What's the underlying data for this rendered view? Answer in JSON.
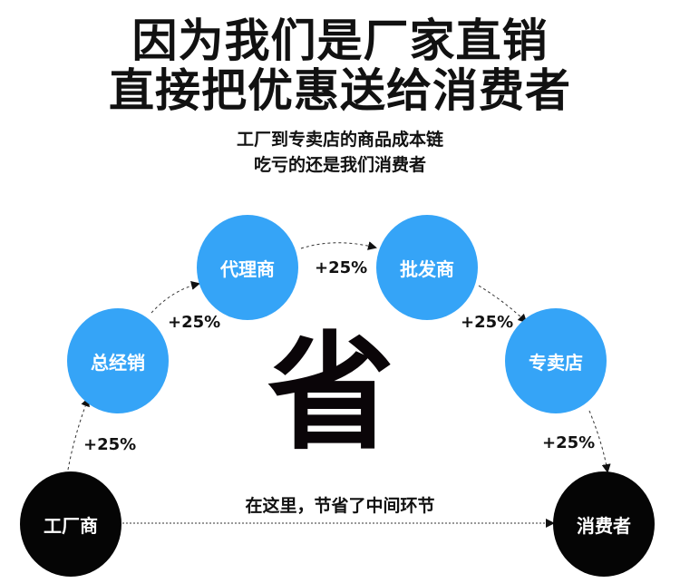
{
  "title_line1": "因为我们是厂家直销",
  "title_line2": "直接把优惠送给消费者",
  "subtitle_line1": "工厂到专卖店的商品成本链",
  "subtitle_line2": "吃亏的还是我们消费者",
  "nodes": {
    "factory": "工厂商",
    "distributor": "总经销",
    "agent": "代理商",
    "wholesaler": "批发商",
    "store": "专卖店",
    "consumer": "消费者"
  },
  "markups": [
    "+25%",
    "+25%",
    "+25%",
    "+25%",
    "+25%"
  ],
  "center_char": "省",
  "direct_label": "在这里，节省了中间环节",
  "colors": {
    "blue_node": "#35a4f7",
    "black_node": "#050505"
  }
}
